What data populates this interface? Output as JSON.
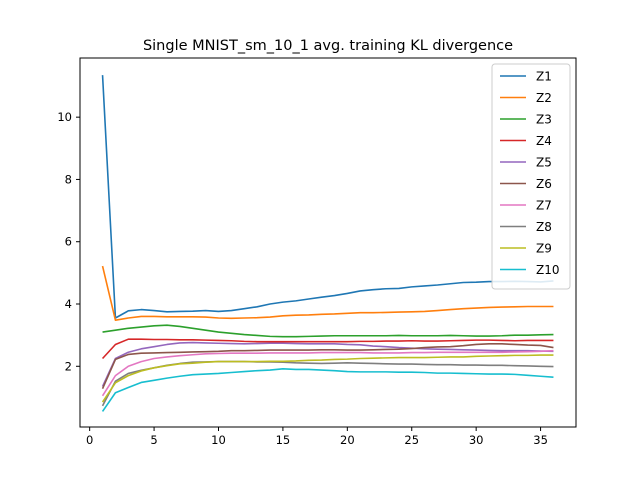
{
  "chart_data": {
    "type": "line",
    "title": "Single MNIST_sm_10_1 avg. training KL divergence",
    "xlabel": "",
    "ylabel": "",
    "xlim": [
      -0.75,
      37.75
    ],
    "ylim": [
      0.05,
      11.9
    ],
    "xticks": [
      0,
      5,
      10,
      15,
      20,
      25,
      30,
      35
    ],
    "yticks": [
      2,
      4,
      6,
      8,
      10
    ],
    "grid": false,
    "legend_position": "top-right",
    "x": [
      1,
      2,
      3,
      4,
      5,
      6,
      7,
      8,
      9,
      10,
      11,
      12,
      13,
      14,
      15,
      16,
      17,
      18,
      19,
      20,
      21,
      22,
      23,
      24,
      25,
      26,
      27,
      28,
      29,
      30,
      31,
      32,
      33,
      34,
      35,
      36
    ],
    "series": [
      {
        "name": "Z1",
        "color": "#1f77b4",
        "values": [
          11.35,
          3.55,
          3.78,
          3.82,
          3.79,
          3.75,
          3.76,
          3.77,
          3.79,
          3.76,
          3.79,
          3.85,
          3.91,
          4.0,
          4.06,
          4.1,
          4.16,
          4.22,
          4.27,
          4.34,
          4.42,
          4.46,
          4.49,
          4.5,
          4.55,
          4.58,
          4.61,
          4.65,
          4.69,
          4.7,
          4.72,
          4.72,
          4.73,
          4.72,
          4.71,
          4.74
        ]
      },
      {
        "name": "Z2",
        "color": "#ff7f0e",
        "values": [
          5.22,
          3.48,
          3.55,
          3.6,
          3.6,
          3.59,
          3.59,
          3.59,
          3.58,
          3.55,
          3.54,
          3.55,
          3.56,
          3.58,
          3.62,
          3.64,
          3.65,
          3.67,
          3.68,
          3.7,
          3.72,
          3.72,
          3.73,
          3.74,
          3.75,
          3.76,
          3.79,
          3.82,
          3.85,
          3.87,
          3.89,
          3.9,
          3.91,
          3.92,
          3.92,
          3.92
        ]
      },
      {
        "name": "Z3",
        "color": "#2ca02c",
        "values": [
          3.1,
          3.16,
          3.22,
          3.26,
          3.3,
          3.32,
          3.28,
          3.22,
          3.16,
          3.1,
          3.06,
          3.02,
          2.99,
          2.96,
          2.95,
          2.95,
          2.96,
          2.97,
          2.98,
          2.98,
          2.98,
          2.98,
          2.98,
          2.99,
          2.98,
          2.98,
          2.98,
          2.99,
          2.98,
          2.97,
          2.97,
          2.98,
          3.0,
          3.0,
          3.01,
          3.02
        ]
      },
      {
        "name": "Z4",
        "color": "#d62728",
        "values": [
          2.25,
          2.7,
          2.87,
          2.87,
          2.86,
          2.86,
          2.85,
          2.85,
          2.84,
          2.83,
          2.82,
          2.8,
          2.79,
          2.79,
          2.79,
          2.79,
          2.79,
          2.79,
          2.79,
          2.79,
          2.8,
          2.8,
          2.81,
          2.81,
          2.82,
          2.81,
          2.81,
          2.82,
          2.83,
          2.84,
          2.84,
          2.83,
          2.82,
          2.83,
          2.83,
          2.83
        ]
      },
      {
        "name": "Z5",
        "color": "#9467bd",
        "values": [
          1.35,
          2.25,
          2.45,
          2.56,
          2.63,
          2.7,
          2.75,
          2.76,
          2.75,
          2.74,
          2.73,
          2.72,
          2.73,
          2.74,
          2.74,
          2.73,
          2.72,
          2.72,
          2.72,
          2.7,
          2.69,
          2.65,
          2.63,
          2.6,
          2.58,
          2.56,
          2.55,
          2.54,
          2.53,
          2.52,
          2.51,
          2.5,
          2.5,
          2.5,
          2.49,
          2.48
        ]
      },
      {
        "name": "Z6",
        "color": "#8c564b",
        "values": [
          1.28,
          2.22,
          2.38,
          2.42,
          2.43,
          2.44,
          2.45,
          2.46,
          2.47,
          2.48,
          2.5,
          2.5,
          2.51,
          2.52,
          2.52,
          2.52,
          2.52,
          2.53,
          2.53,
          2.52,
          2.52,
          2.53,
          2.54,
          2.55,
          2.57,
          2.6,
          2.62,
          2.63,
          2.66,
          2.7,
          2.72,
          2.72,
          2.7,
          2.68,
          2.67,
          2.6
        ]
      },
      {
        "name": "Z7",
        "color": "#e377c2",
        "values": [
          1.05,
          1.7,
          2.0,
          2.15,
          2.25,
          2.3,
          2.34,
          2.37,
          2.4,
          2.41,
          2.42,
          2.42,
          2.42,
          2.43,
          2.43,
          2.43,
          2.43,
          2.44,
          2.44,
          2.44,
          2.44,
          2.43,
          2.43,
          2.43,
          2.44,
          2.44,
          2.45,
          2.45,
          2.45,
          2.45,
          2.45,
          2.45,
          2.46,
          2.47,
          2.48,
          2.5
        ]
      },
      {
        "name": "Z8",
        "color": "#7f7f7f",
        "values": [
          0.73,
          1.52,
          1.77,
          1.87,
          1.95,
          2.03,
          2.09,
          2.13,
          2.14,
          2.15,
          2.15,
          2.15,
          2.14,
          2.14,
          2.13,
          2.11,
          2.1,
          2.09,
          2.1,
          2.11,
          2.1,
          2.09,
          2.08,
          2.07,
          2.07,
          2.06,
          2.05,
          2.05,
          2.04,
          2.04,
          2.03,
          2.03,
          2.02,
          2.01,
          2.0,
          1.99
        ]
      },
      {
        "name": "Z9",
        "color": "#bcbd22",
        "values": [
          0.85,
          1.47,
          1.7,
          1.85,
          1.95,
          2.02,
          2.08,
          2.1,
          2.13,
          2.15,
          2.15,
          2.15,
          2.15,
          2.16,
          2.16,
          2.17,
          2.19,
          2.2,
          2.22,
          2.23,
          2.25,
          2.26,
          2.27,
          2.28,
          2.28,
          2.28,
          2.29,
          2.3,
          2.3,
          2.32,
          2.33,
          2.34,
          2.35,
          2.35,
          2.36,
          2.36
        ]
      },
      {
        "name": "Z10",
        "color": "#17becf",
        "values": [
          0.55,
          1.15,
          1.32,
          1.48,
          1.55,
          1.62,
          1.68,
          1.73,
          1.75,
          1.77,
          1.8,
          1.83,
          1.86,
          1.88,
          1.92,
          1.9,
          1.9,
          1.88,
          1.86,
          1.83,
          1.82,
          1.82,
          1.82,
          1.81,
          1.81,
          1.8,
          1.78,
          1.78,
          1.77,
          1.76,
          1.75,
          1.75,
          1.74,
          1.71,
          1.68,
          1.65
        ]
      }
    ]
  }
}
